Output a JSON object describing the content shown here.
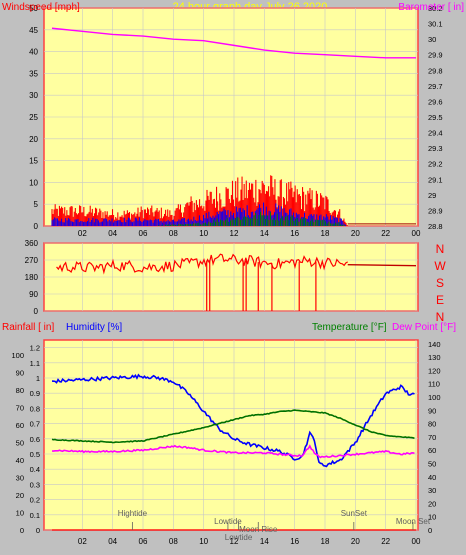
{
  "title": "24 hour graph day   July 26 2020",
  "colors": {
    "background": "#c0c0c0",
    "plot_bg": "#ffffa0",
    "border": "#ff4040",
    "wind": "#ff0000",
    "gust": "#0000ff",
    "avg": "#008000",
    "baro": "#ff00ff",
    "temperature": "#007000",
    "dewpoint": "#ff00ff",
    "humidity": "#0000ff",
    "rain": "#ff0000",
    "title": "#ffff00",
    "label_red": "#ff0000",
    "label_green": "#008000",
    "label_blue": "#0000ff"
  },
  "time_ticks": [
    "02",
    "04",
    "06",
    "08",
    "10",
    "12",
    "14",
    "16",
    "18",
    "20",
    "22",
    "00"
  ],
  "chart_data": [
    {
      "type": "line",
      "id": "wind-baro",
      "left_axis_label": "Windspeed [mph]",
      "right_axis_label": "Barometer [ in]",
      "ylim": [
        0,
        50
      ],
      "y2lim": [
        28.8,
        30.2
      ],
      "left_ticks": [
        "0",
        "5",
        "10",
        "15",
        "20",
        "25",
        "30",
        "35",
        "40",
        "45",
        "50"
      ],
      "right_ticks": [
        "28.8",
        "28.9",
        "29",
        "29.1",
        "29.2",
        "29.3",
        "29.4",
        "29.5",
        "29.6",
        "29.7",
        "29.8",
        "29.9",
        "30",
        "30.1",
        "30.2"
      ],
      "barometer": {
        "x": [
          0,
          2,
          4,
          6,
          8,
          10,
          12,
          14,
          16,
          18,
          20,
          22,
          24
        ],
        "y": [
          30.07,
          30.05,
          30.03,
          30.02,
          30.0,
          29.99,
          29.96,
          29.93,
          29.91,
          29.9,
          29.89,
          29.88,
          29.88
        ]
      },
      "wind_envelope": {
        "x": [
          0,
          2,
          4,
          5.5,
          6,
          8,
          9,
          10,
          11,
          12,
          13,
          14,
          15,
          16,
          17,
          18,
          19,
          19.5,
          20,
          24
        ],
        "y": [
          5,
          5,
          4,
          4,
          5,
          4,
          7,
          8,
          10,
          11,
          12,
          13,
          11,
          10,
          9,
          8,
          4,
          0,
          0,
          0
        ]
      },
      "gust_envelope": {
        "x": [
          0,
          2,
          4,
          5.5,
          6,
          8,
          9,
          10,
          11,
          12,
          13,
          14,
          15,
          16,
          17,
          18,
          19,
          19.5,
          20,
          24
        ],
        "y": [
          2,
          2,
          2,
          2,
          2,
          1.5,
          2,
          3,
          4,
          4.5,
          5,
          6,
          5,
          4,
          3,
          3,
          2,
          0,
          0,
          0
        ]
      },
      "avg_envelope": {
        "x": [
          0,
          2,
          4,
          5.5,
          6,
          8,
          9,
          10,
          11,
          12,
          13,
          14,
          15,
          16,
          17,
          18,
          19,
          19.5,
          20,
          24
        ],
        "y": [
          0,
          0,
          0,
          0,
          0,
          0.5,
          0.5,
          1,
          2,
          2.5,
          3,
          3.5,
          3,
          2.5,
          2,
          1.5,
          1,
          0,
          0,
          0
        ]
      }
    },
    {
      "type": "line",
      "id": "wind-direction",
      "ylim": [
        0,
        360
      ],
      "left_ticks": [
        "0",
        "90",
        "180",
        "270",
        "360"
      ],
      "compass": [
        "N",
        "W",
        "S",
        "E",
        "N"
      ],
      "direction": {
        "x": [
          0,
          1,
          2,
          3,
          4,
          5,
          6,
          7,
          8,
          9,
          10,
          11,
          12,
          13,
          14,
          15,
          16,
          17,
          18,
          19,
          19.5,
          24
        ],
        "y": [
          225,
          235,
          230,
          230,
          240,
          240,
          230,
          235,
          240,
          250,
          265,
          275,
          270,
          265,
          255,
          250,
          260,
          265,
          255,
          250,
          245,
          240
        ]
      },
      "drops_to_north": [
        10.2,
        10.4,
        12.6,
        12.8,
        13.6,
        14.5,
        16.3,
        17.4
      ]
    },
    {
      "type": "line",
      "id": "temp-humidity",
      "left_outer_label": "Rainfall [ in]",
      "left_inner_label": "Humidity [%]",
      "right_label_1": "Temperature [°F]",
      "right_label_2": "Dew Point [°F]",
      "rain_ticks": [
        "0",
        "0.1",
        "0.2",
        "0.3",
        "0.4",
        "0.5",
        "0.6",
        "0.7",
        "0.8",
        "0.9",
        "1",
        "1.1",
        "1.2"
      ],
      "humidity_ticks": [
        "0",
        "10",
        "20",
        "30",
        "40",
        "50",
        "60",
        "70",
        "80",
        "90",
        "100"
      ],
      "temp_ticks": [
        "0",
        "10",
        "20",
        "30",
        "40",
        "50",
        "60",
        "70",
        "80",
        "90",
        "100",
        "110",
        "120",
        "130",
        "140"
      ],
      "temp_lim": [
        0,
        140
      ],
      "humidity": {
        "x": [
          0,
          2,
          4,
          6,
          7,
          8,
          9,
          10,
          11,
          12,
          13,
          14,
          15,
          16,
          16.5,
          17,
          17.3,
          17.6,
          18,
          19,
          20,
          21,
          22,
          23,
          23.5,
          24
        ],
        "y": [
          85,
          86,
          87,
          88,
          87,
          85,
          78,
          68,
          58,
          52,
          49,
          47,
          45,
          41,
          42,
          55,
          52,
          38,
          37,
          40,
          50,
          65,
          78,
          82,
          78,
          77
        ]
      },
      "temperature": {
        "x": [
          0,
          2,
          4,
          6,
          8,
          10,
          11,
          12,
          13,
          14,
          15,
          16,
          17,
          18,
          19,
          20,
          21,
          22,
          23,
          24
        ],
        "y": [
          68,
          67,
          66,
          67,
          72,
          77,
          80,
          83,
          86,
          87,
          89,
          90,
          89,
          88,
          84,
          79,
          74,
          71,
          70,
          69
        ]
      },
      "dewpoint": {
        "x": [
          0,
          2,
          4,
          6,
          8,
          9,
          10,
          12,
          14,
          15,
          16,
          16.5,
          17,
          17.3,
          17.6,
          18,
          20,
          22,
          23,
          24
        ],
        "y": [
          60,
          59,
          59,
          60,
          63,
          62,
          60,
          58,
          58,
          57,
          56,
          56,
          63,
          58,
          55,
          55,
          57,
          59,
          57,
          58
        ]
      },
      "rain": {
        "x": [
          0,
          24
        ],
        "y": [
          0,
          0
        ]
      },
      "events": [
        {
          "label": "Hightide",
          "pos": 5.3,
          "row": 1
        },
        {
          "label": "Lowtide",
          "pos": 11.6,
          "row": 2
        },
        {
          "label": "Moon Rise",
          "pos": 13.6,
          "row": 3
        },
        {
          "label": "Lowtide",
          "pos": 12.3,
          "row": 4
        },
        {
          "label": "SunSet",
          "pos": 19.9,
          "row": 1
        },
        {
          "label": "Moon Set",
          "pos": 23.8,
          "row": 2
        }
      ]
    }
  ]
}
